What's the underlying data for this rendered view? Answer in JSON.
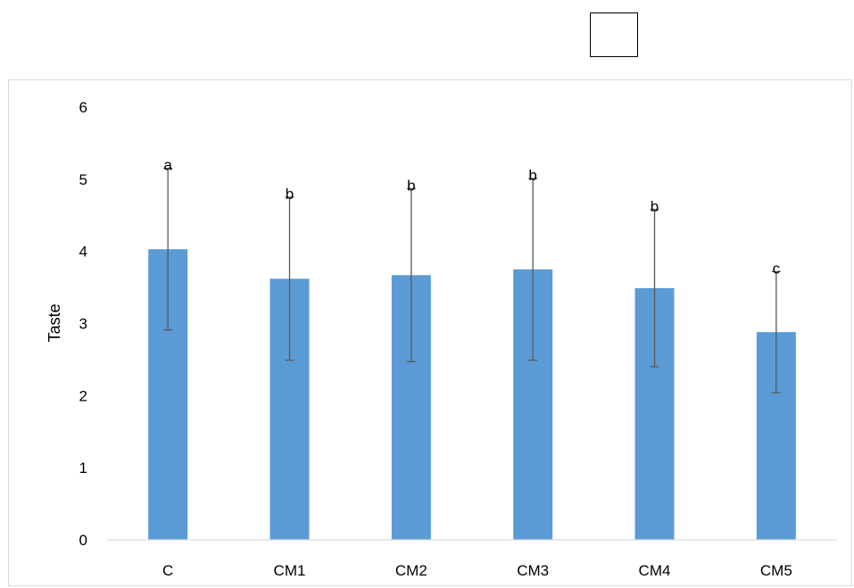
{
  "chart_data": {
    "type": "bar",
    "title": "",
    "xlabel": "",
    "ylabel": "Taste",
    "ylim": [
      0,
      6
    ],
    "yticks": [
      0,
      1,
      2,
      3,
      4,
      5,
      6
    ],
    "categories": [
      "C",
      "CM1",
      "CM2",
      "CM3",
      "CM4",
      "CM5"
    ],
    "values": [
      4.03,
      3.62,
      3.67,
      3.75,
      3.49,
      2.88
    ],
    "error": [
      1.12,
      1.13,
      1.2,
      1.26,
      1.09,
      0.84
    ],
    "significance": [
      "a",
      "b",
      "b",
      "b",
      "b",
      "c"
    ],
    "bar_color": "#5b9bd5",
    "error_color": "#595959",
    "grid": false,
    "legend": "none"
  }
}
